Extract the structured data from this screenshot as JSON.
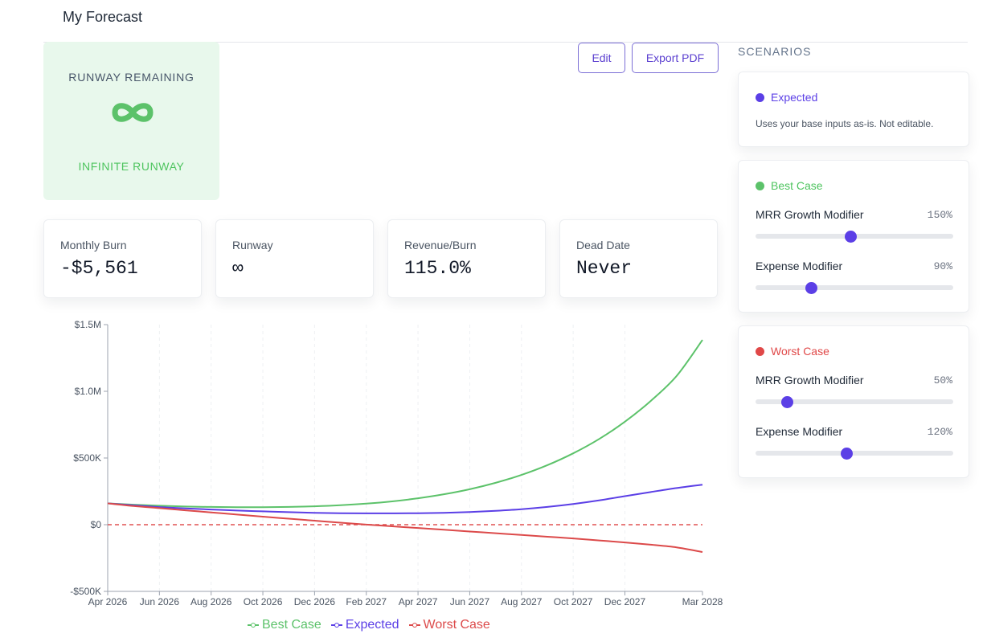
{
  "header": {
    "title": "My Forecast"
  },
  "runway_card": {
    "title": "RUNWAY REMAINING",
    "icon": "infinity-icon",
    "subtitle": "INFINITE RUNWAY"
  },
  "toolbar": {
    "edit_label": "Edit",
    "export_label": "Export PDF"
  },
  "stats": [
    {
      "label": "Monthly Burn",
      "value": "-$5,561"
    },
    {
      "label": "Runway",
      "value": "∞"
    },
    {
      "label": "Revenue/Burn",
      "value": "115.0%"
    },
    {
      "label": "Dead Date",
      "value": "Never"
    }
  ],
  "chart_data": {
    "type": "line",
    "x": [
      "Apr 2026",
      "May 2026",
      "Jun 2026",
      "Jul 2026",
      "Aug 2026",
      "Sep 2026",
      "Oct 2026",
      "Nov 2026",
      "Dec 2026",
      "Jan 2027",
      "Feb 2027",
      "Mar 2027",
      "Apr 2027",
      "May 2027",
      "Jun 2027",
      "Jul 2027",
      "Aug 2027",
      "Sep 2027",
      "Oct 2027",
      "Nov 2027",
      "Dec 2027",
      "Jan 2028",
      "Feb 2028",
      "Mar 2028"
    ],
    "x_tick_labels": [
      "Apr 2026",
      "Jun 2026",
      "Aug 2026",
      "Oct 2026",
      "Dec 2026",
      "Feb 2027",
      "Apr 2027",
      "Jun 2027",
      "Aug 2027",
      "Oct 2027",
      "Dec 2027",
      "Mar 2028"
    ],
    "y_ticks": [
      -500000,
      0,
      500000,
      1000000,
      1500000
    ],
    "y_tick_labels": [
      "-$500K",
      "$0",
      "$500K",
      "$1.0M",
      "$1.5M"
    ],
    "ylim": [
      -500000,
      1500000
    ],
    "reference_line": {
      "y": 0,
      "color": "#e05252",
      "style": "dashed"
    },
    "series": [
      {
        "name": "Best Case",
        "color": "#5cc26a",
        "values": [
          160000,
          150000,
          142000,
          136000,
          133000,
          131000,
          131000,
          133000,
          138000,
          146000,
          158000,
          175000,
          198000,
          228000,
          266000,
          314000,
          373000,
          446000,
          535000,
          642000,
          772000,
          928000,
          1115000,
          1385000
        ]
      },
      {
        "name": "Expected",
        "color": "#5b3fe6",
        "values": [
          160000,
          145000,
          132000,
          122000,
          114000,
          106000,
          100000,
          94000,
          89000,
          86000,
          85000,
          85000,
          86000,
          89000,
          95000,
          104000,
          116000,
          133000,
          155000,
          182000,
          214000,
          245000,
          275000,
          300000
        ]
      },
      {
        "name": "Worst Case",
        "color": "#dc4a4a",
        "values": [
          160000,
          140000,
          124000,
          108000,
          92000,
          76000,
          60000,
          45000,
          30000,
          15000,
          1000,
          -12000,
          -25000,
          -38000,
          -51000,
          -64000,
          -77000,
          -90000,
          -103000,
          -118000,
          -133000,
          -150000,
          -170000,
          -205000
        ]
      }
    ],
    "legend": "bottom"
  },
  "scenarios": {
    "title": "SCENARIOS",
    "expected": {
      "name": "Expected",
      "color": "#5b3fe6",
      "description": "Uses your base inputs as-is. Not editable."
    },
    "best": {
      "name": "Best Case",
      "color": "#5cc26a",
      "mrr_label": "MRR Growth Modifier",
      "mrr_value": "150%",
      "mrr_fraction": 0.48,
      "expense_label": "Expense Modifier",
      "expense_value": "90%",
      "expense_fraction": 0.28
    },
    "worst": {
      "name": "Worst Case",
      "color": "#e04848",
      "mrr_label": "MRR Growth Modifier",
      "mrr_value": "50%",
      "mrr_fraction": 0.16,
      "expense_label": "Expense Modifier",
      "expense_value": "120%",
      "expense_fraction": 0.46
    }
  }
}
